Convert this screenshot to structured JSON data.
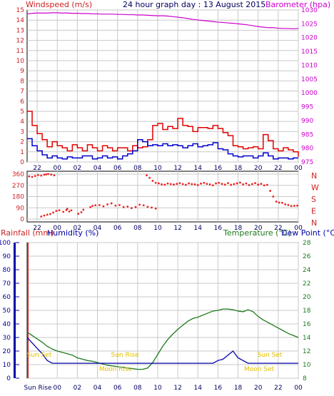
{
  "colors": {
    "wind": "#d11a1a",
    "gust": "#e30000",
    "wind_avg": "#0000cc",
    "barometer": "#cc00cc",
    "direction": "#ee2222",
    "humidity": "#0000aa",
    "temperature": "#1f7a1f",
    "dewpoint": "#0000aa",
    "astro": "#e0c000",
    "grid": "#c8c8c8",
    "axis_red": "#cc2222",
    "axis_blue": "#0000aa",
    "axis_green": "#1f7a1f",
    "axis_dark": "#000060"
  },
  "chart_data": [
    {
      "type": "line",
      "id": "wind_barometer",
      "title": "24 hour graph day : 13 August 2015",
      "left_label": "Windspeed (m/s)",
      "right_label": "Barometer (hpa)",
      "x_ticks": [
        "22",
        "00",
        "02",
        "04",
        "06",
        "08",
        "10",
        "12",
        "14",
        "16",
        "18",
        "20",
        "22",
        "00"
      ],
      "y_left_ticks": [
        "15",
        "14",
        "13",
        "12",
        "11",
        "10",
        "9",
        "8",
        "7",
        "6",
        "5",
        "4",
        "3",
        "2",
        "1",
        "0"
      ],
      "y_right_ticks": [
        "1030",
        "1025",
        "1020",
        "1015",
        "1010",
        "1005",
        "1000",
        "995",
        "990",
        "985",
        "980",
        "975"
      ],
      "y_left_range": [
        0,
        15
      ],
      "y_right_range": [
        975,
        1030
      ],
      "x_range_hours": [
        0,
        27
      ],
      "grid": true,
      "series": [
        {
          "name": "",
          "values_x_hours": [
            0,
            0.5,
            1,
            1.5,
            2,
            2.5,
            3,
            3.5,
            4,
            4.5,
            5,
            5.5,
            6,
            6.5,
            7,
            7.5,
            8,
            8.5,
            9,
            9.5,
            10,
            10.5,
            11,
            11.5,
            12,
            12.5,
            13,
            13.5,
            14,
            14.5,
            15,
            15.5,
            16,
            16.5,
            17,
            17.5,
            18,
            18.5,
            19,
            19.5,
            20,
            20.5,
            21,
            21.5,
            22,
            22.5,
            23,
            23.5,
            24,
            24.5,
            25,
            25.5,
            26,
            26.5,
            27
          ],
          "values": [
            1028.6,
            1028.8,
            1028.9,
            1028.9,
            1028.9,
            1029.0,
            1029.0,
            1028.9,
            1028.9,
            1028.8,
            1028.8,
            1028.7,
            1028.7,
            1028.6,
            1028.6,
            1028.5,
            1028.5,
            1028.5,
            1028.4,
            1028.4,
            1028.3,
            1028.3,
            1028.2,
            1028.2,
            1028.1,
            1028.0,
            1027.9,
            1027.9,
            1027.8,
            1027.6,
            1027.4,
            1027.2,
            1026.9,
            1026.6,
            1026.4,
            1026.2,
            1026.0,
            1025.8,
            1025.6,
            1025.5,
            1025.3,
            1025.2,
            1025.0,
            1024.8,
            1024.6,
            1024.3,
            1024.0,
            1023.8,
            1023.6,
            1023.6,
            1023.4,
            1023.3,
            1023.3,
            1023.2,
            1023.3
          ]
        },
        {
          "name": "",
          "values_x_hours": [
            0,
            0.5,
            1,
            1.5,
            2,
            2.5,
            3,
            3.5,
            4,
            4.5,
            5,
            5.5,
            6,
            6.5,
            7,
            7.5,
            8,
            8.5,
            9,
            9.5,
            10,
            10.5,
            11,
            11.5,
            12,
            12.5,
            13,
            13.5,
            14,
            14.5,
            15,
            15.5,
            16,
            16.5,
            17,
            17.5,
            18,
            18.5,
            19,
            19.5,
            20,
            20.5,
            21,
            21.5,
            22,
            22.5,
            23,
            23.5,
            24,
            24.5,
            25,
            25.5,
            26,
            26.5,
            27
          ],
          "values": [
            5.0,
            3.6,
            2.8,
            2.2,
            1.5,
            2.0,
            1.6,
            1.4,
            1.1,
            1.7,
            1.4,
            1.1,
            1.7,
            1.4,
            1.1,
            1.6,
            1.4,
            1.1,
            1.4,
            1.4,
            1.1,
            1.6,
            1.4,
            1.5,
            2.2,
            3.6,
            3.8,
            3.2,
            3.5,
            3.3,
            4.3,
            3.6,
            3.5,
            3.0,
            3.4,
            3.4,
            3.3,
            3.6,
            3.3,
            2.9,
            2.6,
            1.6,
            1.5,
            1.3,
            1.4,
            1.5,
            1.3,
            2.7,
            2.1,
            1.3,
            1.1,
            1.4,
            1.2,
            1.0,
            0.5
          ]
        },
        {
          "name": "",
          "values_x_hours": [
            0,
            0.5,
            1,
            1.5,
            2,
            2.5,
            3,
            3.5,
            4,
            4.5,
            5,
            5.5,
            6,
            6.5,
            7,
            7.5,
            8,
            8.5,
            9,
            9.5,
            10,
            10.5,
            11,
            11.5,
            12,
            12.5,
            13,
            13.5,
            14,
            14.5,
            15,
            15.5,
            16,
            16.5,
            17,
            17.5,
            18,
            18.5,
            19,
            19.5,
            20,
            20.5,
            21,
            21.5,
            22,
            22.5,
            23,
            23.5,
            24,
            24.5,
            25,
            25.5,
            26,
            26.5,
            27
          ],
          "values": [
            2.3,
            1.6,
            1.1,
            0.7,
            0.4,
            0.6,
            0.4,
            0.3,
            0.5,
            0.4,
            0.4,
            0.6,
            0.6,
            0.3,
            0.4,
            0.6,
            0.4,
            0.5,
            0.3,
            0.6,
            0.8,
            1.1,
            2.2,
            2.0,
            1.6,
            1.7,
            1.6,
            1.8,
            1.6,
            1.7,
            1.6,
            1.4,
            1.6,
            1.8,
            1.5,
            1.6,
            1.7,
            1.9,
            1.3,
            1.2,
            0.8,
            0.6,
            0.5,
            0.6,
            0.6,
            0.4,
            0.6,
            0.9,
            0.6,
            0.3,
            0.4,
            0.4,
            0.3,
            0.4,
            0.4
          ]
        }
      ]
    },
    {
      "type": "scatter",
      "id": "wind_direction",
      "left_label": "",
      "x_ticks": [
        "22",
        "00",
        "02",
        "04",
        "06",
        "08",
        "10",
        "12",
        "14",
        "16",
        "18",
        "20",
        "22",
        "00"
      ],
      "y_left_ticks": [
        "360",
        "270",
        "180",
        "90",
        "0"
      ],
      "y_right_ticks": [
        "N",
        "W",
        "S",
        "E",
        "N"
      ],
      "y_range": [
        0,
        360
      ],
      "x_range_hours": [
        0,
        27
      ],
      "series": [
        {
          "name": "",
          "x_hours": [
            0.2,
            0.5,
            0.8,
            1.1,
            1.4,
            1.7,
            1.9,
            2.1,
            2.4,
            2.7,
            1.4,
            1.7,
            2.0,
            2.3,
            2.6,
            2.9,
            3.2,
            3.6,
            3.9,
            4.0,
            4.2,
            4.4,
            5.1,
            5.4,
            5.6,
            6.3,
            6.5,
            6.8,
            7.2,
            7.6,
            8.0,
            8.4,
            8.8,
            9.2,
            9.6,
            10.0,
            10.4,
            10.8,
            11.2,
            11.6,
            12.0,
            12.4,
            12.8,
            11.9,
            12.2,
            12.5,
            12.8,
            13.1,
            13.4,
            13.7,
            14.0,
            14.3,
            14.6,
            14.9,
            15.2,
            15.5,
            15.8,
            16.1,
            16.4,
            16.7,
            17.0,
            17.3,
            17.6,
            17.9,
            18.2,
            18.5,
            18.8,
            19.1,
            19.4,
            19.7,
            20.0,
            20.3,
            20.6,
            20.9,
            21.2,
            21.5,
            21.8,
            22.1,
            22.4,
            22.7,
            23.0,
            23.3,
            23.6,
            23.9,
            24.2,
            24.5,
            24.8,
            25.1,
            25.4,
            25.7,
            26.0,
            26.3,
            26.6,
            26.9
          ],
          "values": [
            342,
            338,
            345,
            352,
            348,
            355,
            358,
            360,
            356,
            350,
            20,
            28,
            35,
            40,
            52,
            65,
            70,
            58,
            72,
            82,
            60,
            70,
            42,
            55,
            75,
            95,
            105,
            110,
            112,
            102,
            118,
            126,
            108,
            112,
            96,
            100,
            88,
            96,
            115,
            110,
            98,
            92,
            84,
            350,
            330,
            306,
            290,
            286,
            278,
            275,
            285,
            280,
            276,
            282,
            288,
            280,
            274,
            286,
            280,
            278,
            272,
            284,
            290,
            282,
            278,
            270,
            286,
            290,
            282,
            276,
            288,
            274,
            280,
            286,
            292,
            278,
            285,
            272,
            280,
            288,
            276,
            282,
            270,
            274,
            226,
            180,
            140,
            132,
            130,
            118,
            112,
            104,
            106,
            108
          ]
        }
      ]
    },
    {
      "type": "line",
      "id": "rain_humidity_temp",
      "left_labels": [
        "Rainfall (mm)",
        "Humidity (%)"
      ],
      "right_labels": [
        "Temperature (°C)",
        "Dew Point (°C)"
      ],
      "x_ticks": [
        "00",
        "02",
        "04",
        "06",
        "08",
        "10",
        "12",
        "14",
        "16",
        "18",
        "20",
        "22",
        "00"
      ],
      "y_left_ticks": [
        "100",
        "90",
        "80",
        "70",
        "60",
        "50",
        "40",
        "30",
        "20",
        "10",
        "0"
      ],
      "y_right_ticks": [
        "28",
        "26",
        "24",
        "22",
        "20",
        "18",
        "16",
        "14",
        "12",
        "10",
        "8"
      ],
      "y_left_range": [
        0,
        100
      ],
      "y_right_range": [
        8,
        28
      ],
      "x_range_hours": [
        0,
        27
      ],
      "annotations": [
        "Sun Set",
        "Sun Rise",
        "Moon Rise",
        "Sun Set",
        "Moon Set",
        "Sun Rise"
      ],
      "series": [
        {
          "name": "",
          "values_x_hours": [
            0,
            0.5,
            1,
            1.5,
            2,
            2.5,
            3,
            3.5,
            4,
            4.5,
            5,
            5.5,
            6,
            6.5,
            7,
            7.5,
            8,
            8.5,
            9,
            9.5,
            10,
            10.5,
            11,
            11.5,
            12,
            12.5,
            13,
            13.5,
            14,
            14.5,
            15,
            15.5,
            16,
            16.5,
            17,
            17.5,
            18,
            18.5,
            19,
            19.5,
            20,
            20.5,
            21,
            21.5,
            22,
            22.5,
            23,
            23.5,
            24,
            24.5,
            25,
            25.5,
            26,
            26.5,
            27
          ],
          "values": [
            14.8,
            14.3,
            13.8,
            13.3,
            12.7,
            12.3,
            12.0,
            11.8,
            11.6,
            11.4,
            11.0,
            10.8,
            10.6,
            10.5,
            10.3,
            10.1,
            9.9,
            9.8,
            9.7,
            9.6,
            9.5,
            9.4,
            9.3,
            9.3,
            9.5,
            10.3,
            11.5,
            12.7,
            13.7,
            14.5,
            15.2,
            15.8,
            16.4,
            16.8,
            17.0,
            17.3,
            17.6,
            17.9,
            18.0,
            18.2,
            18.2,
            18.1,
            17.9,
            17.8,
            18.1,
            17.8,
            17.1,
            16.6,
            16.2,
            15.8,
            15.4,
            15.0,
            14.6,
            14.3,
            14.0
          ]
        },
        {
          "name": "",
          "values_x_hours": [
            0,
            0.5,
            1,
            1.5,
            2,
            2.5,
            3,
            3.5,
            4,
            4.5,
            5,
            5.5,
            6,
            6.5,
            7,
            7.5,
            8,
            8.5,
            9,
            9.5,
            10,
            10.5,
            11,
            11.5,
            12,
            12.5,
            13,
            13.5,
            14,
            14.5,
            15,
            15.5,
            16,
            16.5,
            17,
            17.5,
            18,
            18.5,
            19,
            19.5,
            20,
            20.5,
            21,
            21.5,
            22,
            22.5,
            23,
            23.5,
            24,
            24.5,
            25,
            25.5,
            26,
            26.5,
            27
          ],
          "values": [
            30,
            26,
            22,
            18,
            13,
            11,
            11,
            11,
            11,
            11,
            11,
            11,
            11,
            11,
            11,
            11,
            11,
            11,
            11,
            11,
            11,
            11,
            11,
            11,
            11,
            11,
            11,
            11,
            11,
            11,
            11,
            11,
            11,
            11,
            11,
            11,
            11,
            11,
            13,
            14,
            17,
            20,
            15,
            13,
            11,
            11,
            11,
            11,
            11,
            11,
            11,
            11,
            11,
            11,
            11
          ]
        }
      ]
    }
  ]
}
